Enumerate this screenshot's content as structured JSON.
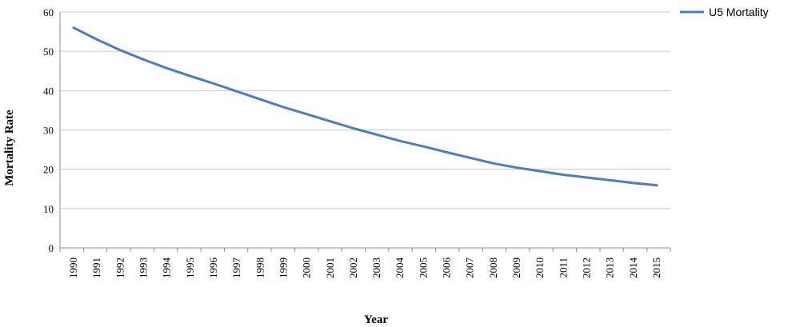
{
  "chart_data": {
    "type": "line",
    "title": "",
    "xlabel": "Year",
    "ylabel": "Mortality Rate",
    "x": [
      "1990",
      "1991",
      "1992",
      "1993",
      "1994",
      "1995",
      "1996",
      "1997",
      "1998",
      "1999",
      "2000",
      "2001",
      "2002",
      "2003",
      "2004",
      "2005",
      "2006",
      "2007",
      "2008",
      "2009",
      "2010",
      "2011",
      "2012",
      "2013",
      "2014",
      "2015"
    ],
    "series": [
      {
        "name": "U5 Mortality",
        "color": "#4a7cc9",
        "values": [
          56.0,
          53.0,
          50.3,
          47.9,
          45.7,
          43.7,
          41.8,
          39.8,
          37.8,
          35.8,
          34.0,
          32.2,
          30.4,
          28.8,
          27.2,
          25.8,
          24.3,
          22.9,
          21.5,
          20.4,
          19.5,
          18.6,
          17.9,
          17.2,
          16.5,
          15.9
        ]
      }
    ],
    "ylim": [
      0,
      60
    ],
    "yticks": [
      0,
      10,
      20,
      30,
      40,
      50,
      60
    ],
    "grid": true,
    "legend_position": "top-right"
  }
}
